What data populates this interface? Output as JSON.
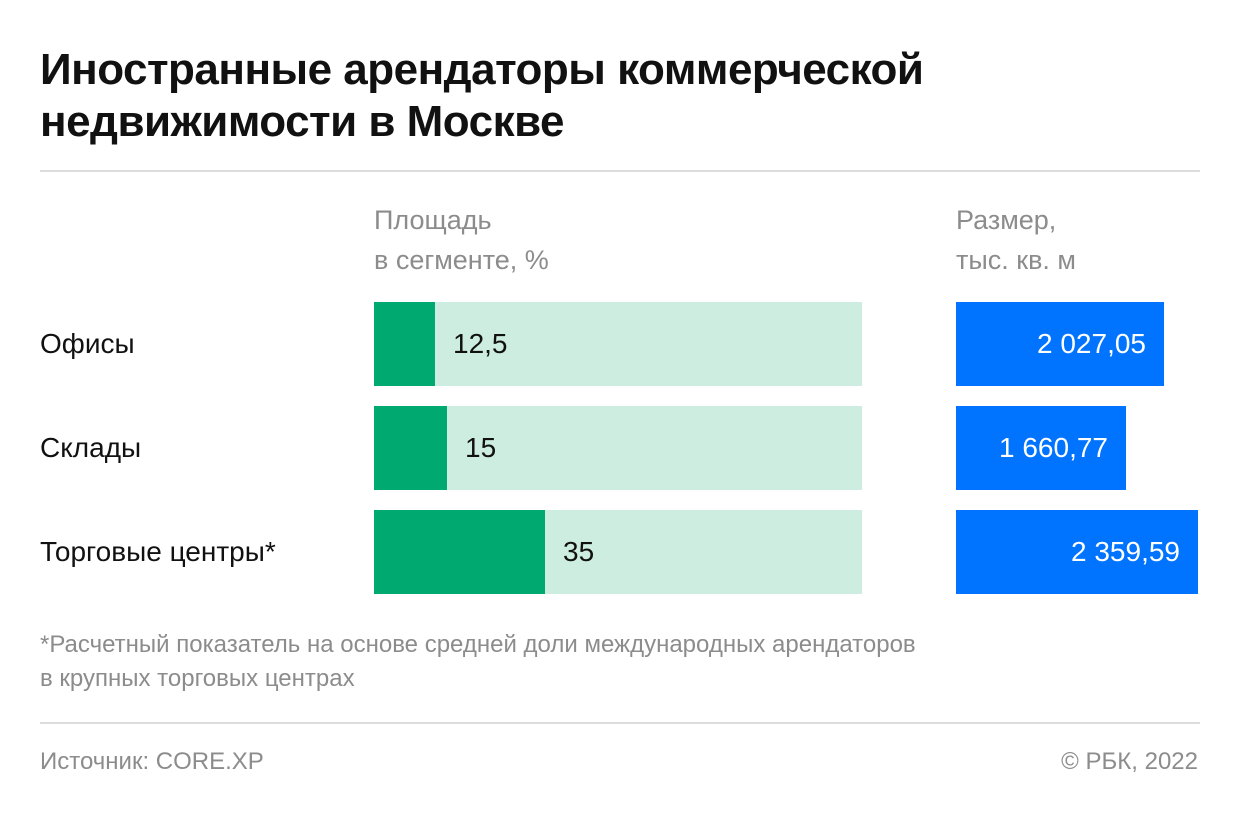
{
  "title_lines": [
    "Иностранные арендаторы коммерческой",
    "недвижимости в Москве"
  ],
  "chart_data": {
    "type": "bar",
    "categories": [
      "Офисы",
      "Склады",
      "Торговые центры*"
    ],
    "series": [
      {
        "name": "Площадь в сегменте, %",
        "values": [
          12.5,
          15,
          35
        ],
        "labels": [
          "12,5",
          "15",
          "35"
        ],
        "xlim": [
          0,
          100
        ]
      },
      {
        "name": "Размер, тыс. кв. м",
        "values": [
          2027.05,
          1660.77,
          2359.59
        ],
        "labels": [
          "2 027,05",
          "1 660,77",
          "2 359,59"
        ]
      }
    ],
    "column_headers": {
      "share": [
        "Площадь",
        "в сегменте, %"
      ],
      "size": [
        "Размер,",
        "тыс. кв. м"
      ]
    },
    "colors": {
      "share_fill": "#00a970",
      "share_track": "#ccede0",
      "size_fill": "#0073ff"
    }
  },
  "footnote_lines": [
    "*Расчетный показатель на основе средней доли международных арендаторов",
    "в крупных торговых центрах"
  ],
  "source": "Источник: CORE.XP",
  "copyright": "© РБК, 2022"
}
